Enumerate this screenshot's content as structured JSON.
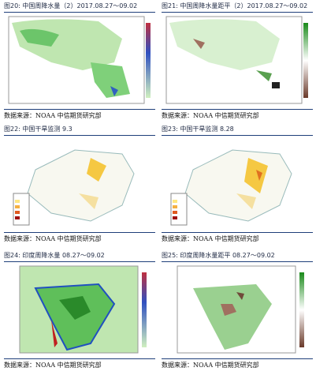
{
  "figures": [
    {
      "caption": "图20: 中国周降水量（2）2017.08.27～09.02",
      "source": "数据来源：NOAA  中信期货研究部"
    },
    {
      "caption": "图21: 中国周降水量距平（2）2017.08.27～09.02",
      "source": "数据来源：NOAA  中信期货研究部"
    },
    {
      "caption": "图22: 中国干旱监测 9.3",
      "source": "数据来源：NOAA  中信期货研究部"
    },
    {
      "caption": "图23: 中国干旱监测 8.28",
      "source": "数据来源：NOAA  中信期货研究部"
    },
    {
      "caption": "图24: 印度周降水量 08.27～09.02",
      "source": "数据来源：NOAA  中信期货研究部"
    },
    {
      "caption": "图25: 印度周降水量距平 08.27～09.02",
      "source": "数据来源：NOAA  中信期货研究部"
    }
  ]
}
